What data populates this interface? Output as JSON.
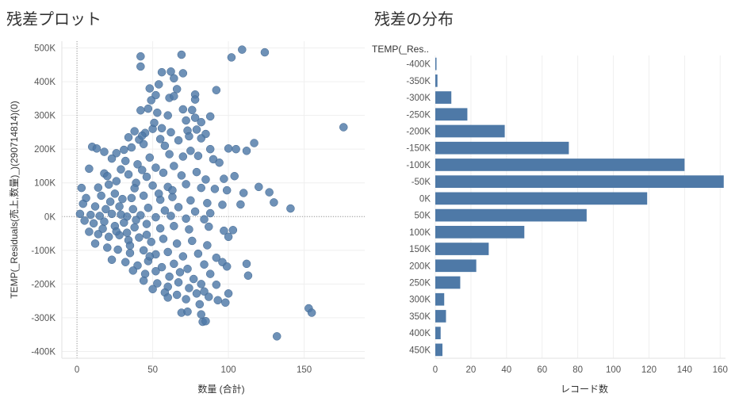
{
  "titles": {
    "scatter": "残差プロット",
    "histogram": "残差の分布"
  },
  "histogram_header": "TEMP(_Res..",
  "chart_data": [
    {
      "type": "scatter",
      "title": "残差プロット",
      "xlabel": "数量 (合計)",
      "ylabel": "TEMP(_Residuals(売上,数量)_)(290714814)(0)",
      "xlim": [
        -10,
        190
      ],
      "ylim": [
        -420000,
        520000
      ],
      "x_ticks": [
        0,
        50,
        100,
        150
      ],
      "x_tick_labels": [
        "0",
        "50",
        "100",
        "150"
      ],
      "y_ticks": [
        -400000,
        -300000,
        -200000,
        -100000,
        0,
        100000,
        200000,
        300000,
        400000,
        500000
      ],
      "y_tick_labels": [
        "-400K",
        "-300K",
        "-200K",
        "-100K",
        "0K",
        "100K",
        "200K",
        "300K",
        "400K",
        "500K"
      ],
      "grid": true,
      "reference_lines": {
        "x": 0,
        "y": 0
      },
      "color": "#4e79a7",
      "points": [
        [
          42,
          475000
        ],
        [
          69,
          480000
        ],
        [
          109,
          495000
        ],
        [
          124,
          487000
        ],
        [
          102,
          472000
        ],
        [
          42,
          445000
        ],
        [
          56,
          428000
        ],
        [
          62,
          430000
        ],
        [
          64,
          410000
        ],
        [
          70,
          425000
        ],
        [
          54,
          392000
        ],
        [
          48,
          380000
        ],
        [
          66,
          378000
        ],
        [
          92,
          375000
        ],
        [
          52,
          360000
        ],
        [
          61,
          352000
        ],
        [
          64,
          357000
        ],
        [
          78,
          362000
        ],
        [
          78,
          347000
        ],
        [
          49,
          345000
        ],
        [
          47,
          320000
        ],
        [
          42,
          315000
        ],
        [
          70,
          318000
        ],
        [
          76,
          316000
        ],
        [
          88,
          297000
        ],
        [
          53,
          308000
        ],
        [
          60,
          300000
        ],
        [
          72,
          285000
        ],
        [
          78,
          293000
        ],
        [
          82,
          280000
        ],
        [
          176,
          265000
        ],
        [
          50,
          260000
        ],
        [
          51,
          278000
        ],
        [
          56,
          262000
        ],
        [
          62,
          250000
        ],
        [
          45,
          248000
        ],
        [
          38,
          253000
        ],
        [
          73,
          255000
        ],
        [
          79,
          258000
        ],
        [
          85,
          245000
        ],
        [
          34,
          235000
        ],
        [
          41,
          228000
        ],
        [
          43,
          240000
        ],
        [
          55,
          230000
        ],
        [
          67,
          226000
        ],
        [
          74,
          238000
        ],
        [
          82,
          232000
        ],
        [
          117,
          218000
        ],
        [
          100,
          202000
        ],
        [
          105,
          200000
        ],
        [
          112,
          195000
        ],
        [
          88,
          200000
        ],
        [
          75,
          195000
        ],
        [
          58,
          210000
        ],
        [
          44,
          215000
        ],
        [
          31,
          198000
        ],
        [
          18,
          192000
        ],
        [
          10,
          207000
        ],
        [
          13,
          202000
        ],
        [
          36,
          205000
        ],
        [
          26,
          188000
        ],
        [
          23,
          172000
        ],
        [
          32,
          165000
        ],
        [
          48,
          175000
        ],
        [
          61,
          185000
        ],
        [
          70,
          178000
        ],
        [
          80,
          180000
        ],
        [
          90,
          170000
        ],
        [
          94,
          160000
        ],
        [
          64,
          150000
        ],
        [
          52,
          145000
        ],
        [
          40,
          155000
        ],
        [
          29,
          140000
        ],
        [
          18,
          128000
        ],
        [
          8,
          142000
        ],
        [
          20,
          120000
        ],
        [
          34,
          125000
        ],
        [
          46,
          118000
        ],
        [
          57,
          130000
        ],
        [
          69,
          122000
        ],
        [
          79,
          132000
        ],
        [
          85,
          110000
        ],
        [
          97,
          112000
        ],
        [
          104,
          120000
        ],
        [
          120,
          88000
        ],
        [
          127,
          72000
        ],
        [
          14,
          86000
        ],
        [
          3,
          85000
        ],
        [
          21,
          95000
        ],
        [
          26,
          105000
        ],
        [
          39,
          100000
        ],
        [
          50,
          92000
        ],
        [
          60,
          88000
        ],
        [
          72,
          96000
        ],
        [
          82,
          85000
        ],
        [
          91,
          82000
        ],
        [
          99,
          78000
        ],
        [
          110,
          70000
        ],
        [
          130,
          42000
        ],
        [
          141,
          24000
        ],
        [
          6,
          55000
        ],
        [
          16,
          62000
        ],
        [
          25,
          68000
        ],
        [
          36,
          55000
        ],
        [
          44,
          62000
        ],
        [
          55,
          50000
        ],
        [
          63,
          58000
        ],
        [
          75,
          48000
        ],
        [
          86,
          40000
        ],
        [
          96,
          35000
        ],
        [
          108,
          36000
        ],
        [
          4,
          38000
        ],
        [
          12,
          30000
        ],
        [
          19,
          22000
        ],
        [
          28,
          30000
        ],
        [
          37,
          22000
        ],
        [
          47,
          26000
        ],
        [
          58,
          18000
        ],
        [
          67,
          28000
        ],
        [
          78,
          15000
        ],
        [
          88,
          10000
        ],
        [
          2,
          8000
        ],
        [
          9,
          5000
        ],
        [
          15,
          2000
        ],
        [
          23,
          8000
        ],
        [
          33,
          0
        ],
        [
          42,
          4000
        ],
        [
          52,
          -2000
        ],
        [
          62,
          2000
        ],
        [
          72,
          -6000
        ],
        [
          84,
          -8000
        ],
        [
          5,
          -12000
        ],
        [
          11,
          -20000
        ],
        [
          18,
          -15000
        ],
        [
          25,
          -28000
        ],
        [
          31,
          -18000
        ],
        [
          38,
          -32000
        ],
        [
          46,
          -22000
        ],
        [
          55,
          -35000
        ],
        [
          64,
          -28000
        ],
        [
          74,
          -38000
        ],
        [
          87,
          -30000
        ],
        [
          97,
          -42000
        ],
        [
          103,
          -40000
        ],
        [
          8,
          -45000
        ],
        [
          14,
          -52000
        ],
        [
          21,
          -60000
        ],
        [
          28,
          -55000
        ],
        [
          34,
          -70000
        ],
        [
          41,
          -62000
        ],
        [
          49,
          -75000
        ],
        [
          57,
          -66000
        ],
        [
          66,
          -80000
        ],
        [
          76,
          -72000
        ],
        [
          86,
          -85000
        ],
        [
          100,
          -60000
        ],
        [
          12,
          -80000
        ],
        [
          20,
          -92000
        ],
        [
          27,
          -98000
        ],
        [
          35,
          -108000
        ],
        [
          44,
          -100000
        ],
        [
          52,
          -112000
        ],
        [
          60,
          -105000
        ],
        [
          70,
          -118000
        ],
        [
          80,
          -110000
        ],
        [
          92,
          -122000
        ],
        [
          23,
          -128000
        ],
        [
          32,
          -135000
        ],
        [
          40,
          -145000
        ],
        [
          47,
          -132000
        ],
        [
          56,
          -150000
        ],
        [
          64,
          -140000
        ],
        [
          73,
          -155000
        ],
        [
          84,
          -142000
        ],
        [
          96,
          -135000
        ],
        [
          112,
          -140000
        ],
        [
          37,
          -160000
        ],
        [
          45,
          -170000
        ],
        [
          52,
          -162000
        ],
        [
          61,
          -178000
        ],
        [
          68,
          -165000
        ],
        [
          77,
          -185000
        ],
        [
          88,
          -170000
        ],
        [
          99,
          -148000
        ],
        [
          113,
          -175000
        ],
        [
          44,
          -190000
        ],
        [
          53,
          -198000
        ],
        [
          60,
          -208000
        ],
        [
          67,
          -195000
        ],
        [
          74,
          -212000
        ],
        [
          82,
          -200000
        ],
        [
          92,
          -202000
        ],
        [
          50,
          -215000
        ],
        [
          58,
          -225000
        ],
        [
          66,
          -232000
        ],
        [
          79,
          -228000
        ],
        [
          84,
          -222000
        ],
        [
          100,
          -228000
        ],
        [
          60,
          -240000
        ],
        [
          72,
          -245000
        ],
        [
          87,
          -238000
        ],
        [
          93,
          -248000
        ],
        [
          81,
          -260000
        ],
        [
          69,
          -285000
        ],
        [
          73,
          -282000
        ],
        [
          82,
          -290000
        ],
        [
          98,
          -255000
        ],
        [
          83,
          -312000
        ],
        [
          85,
          -310000
        ],
        [
          153,
          -272000
        ],
        [
          155,
          -285000
        ],
        [
          132,
          -355000
        ],
        [
          17,
          -36000
        ],
        [
          26,
          -44000
        ],
        [
          33,
          -48000
        ],
        [
          39,
          -10000
        ],
        [
          46,
          -54000
        ],
        [
          30,
          52000
        ],
        [
          22,
          44000
        ],
        [
          54,
          68000
        ],
        [
          63,
          78000
        ],
        [
          43,
          138000
        ],
        [
          38,
          84000
        ],
        [
          29,
          6000
        ],
        [
          35,
          -86000
        ],
        [
          48,
          -118000
        ]
      ]
    },
    {
      "type": "bar",
      "orientation": "horizontal",
      "title": "残差の分布",
      "xlabel": "レコード数",
      "ylabel": "TEMP(_Res..",
      "xlim": [
        0,
        163
      ],
      "x_ticks": [
        0,
        20,
        40,
        60,
        80,
        100,
        120,
        140,
        160
      ],
      "x_tick_labels": [
        "0",
        "20",
        "40",
        "60",
        "80",
        "100",
        "120",
        "140",
        "160"
      ],
      "grid": true,
      "color": "#4e79a7",
      "categories": [
        "-400K",
        "-350K",
        "-300K",
        "-250K",
        "-200K",
        "-150K",
        "-100K",
        "-50K",
        "0K",
        "50K",
        "100K",
        "150K",
        "200K",
        "250K",
        "300K",
        "350K",
        "400K",
        "450K"
      ],
      "values": [
        0.5,
        1.2,
        9,
        18,
        39,
        75,
        140,
        162,
        119,
        85,
        50,
        30,
        23,
        14,
        5,
        6,
        3,
        4
      ]
    }
  ]
}
